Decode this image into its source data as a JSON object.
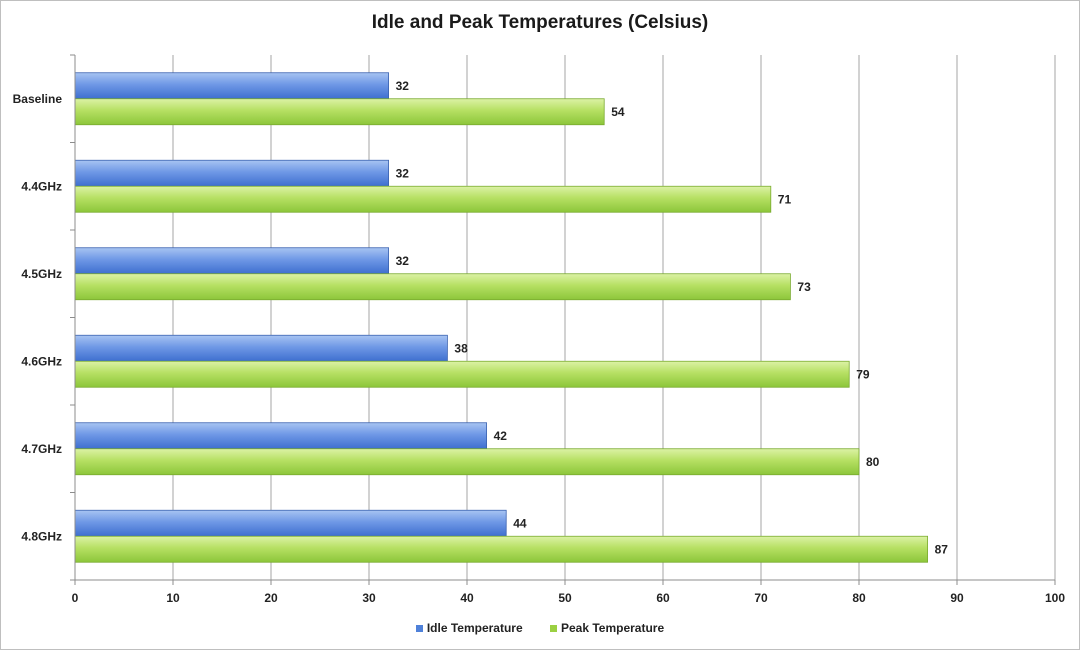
{
  "chart_data": {
    "type": "bar",
    "orientation": "horizontal",
    "title": "Idle and Peak Temperatures (Celsius)",
    "categories": [
      "Baseline",
      "4.4GHz",
      "4.5GHz",
      "4.6GHz",
      "4.7GHz",
      "4.8GHz"
    ],
    "series": [
      {
        "name": "Idle Temperature",
        "values": [
          32,
          32,
          32,
          38,
          42,
          44
        ],
        "color": "#4f81d9"
      },
      {
        "name": "Peak Temperature",
        "values": [
          54,
          71,
          73,
          79,
          80,
          87
        ],
        "color": "#9bd042"
      }
    ],
    "xlim": [
      0,
      100
    ],
    "xticks": [
      0,
      10,
      20,
      30,
      40,
      50,
      60,
      70,
      80,
      90,
      100
    ],
    "grid": "vertical",
    "legend_position": "bottom",
    "data_labels": true
  }
}
